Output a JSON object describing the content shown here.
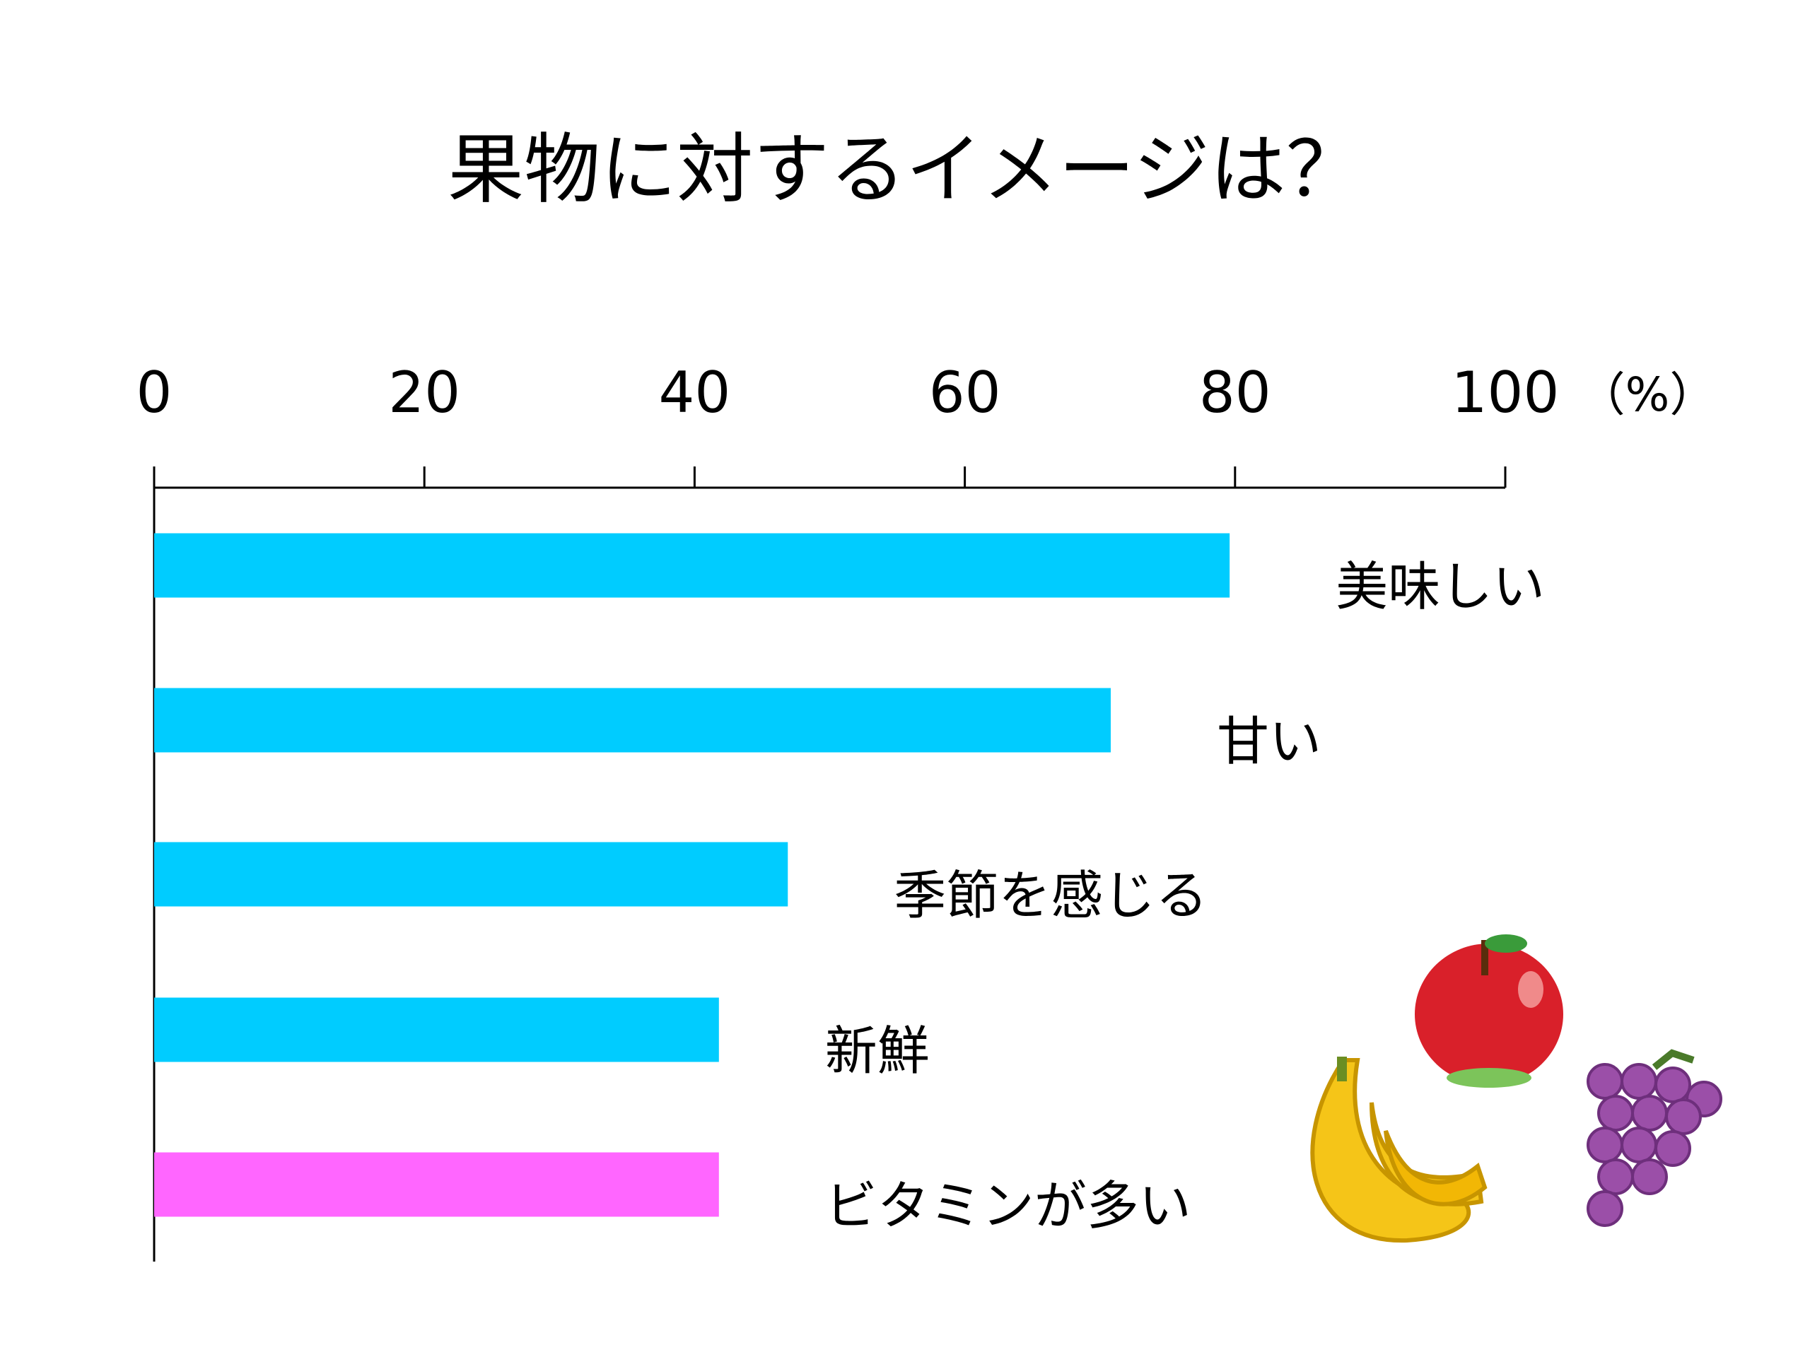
{
  "chart_data": {
    "type": "barh",
    "title": "果物に対するイメージは？",
    "x_unit": "（%）",
    "categories": [
      "美味しい",
      "甘い",
      "季節を感じる",
      "新鮮",
      "ビタミンが多い"
    ],
    "values": [
      79.6,
      70.8,
      46.9,
      41.8,
      41.8
    ],
    "colors": [
      "#00ccff",
      "#00ccff",
      "#00ccff",
      "#00ccff",
      "#ff66ff"
    ],
    "xlim": [
      0,
      100
    ],
    "xticks": [
      0,
      20,
      40,
      60,
      80,
      100
    ]
  }
}
